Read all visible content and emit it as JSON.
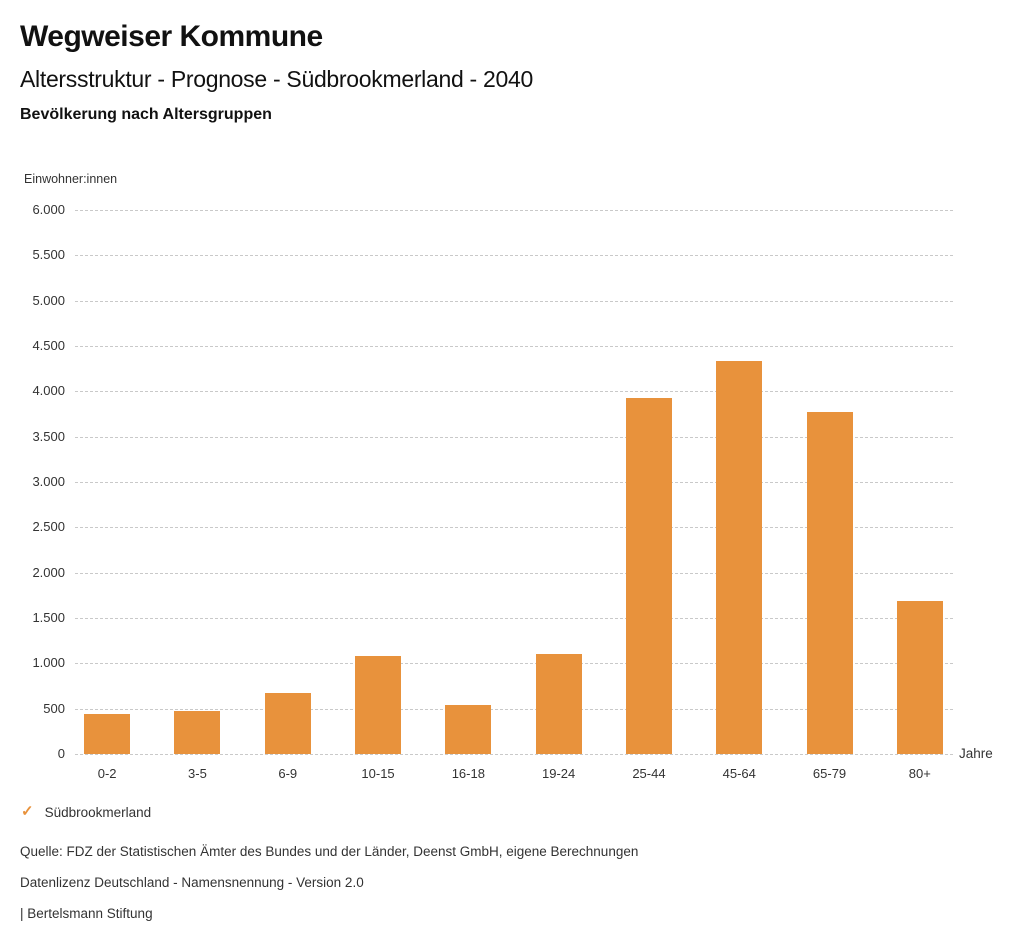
{
  "header": {
    "title": "Wegweiser Kommune",
    "subtitle": "Altersstruktur - Prognose - Südbrookmerland - 2040",
    "heading": "Bevölkerung nach Altersgruppen"
  },
  "chart_data": {
    "type": "bar",
    "title": "Bevölkerung nach Altersgruppen",
    "unit_label": "Einwohner:innen",
    "xlabel": "Jahre",
    "categories": [
      "0-2",
      "3-5",
      "6-9",
      "10-15",
      "16-18",
      "19-24",
      "25-44",
      "45-64",
      "65-79",
      "80+"
    ],
    "values": [
      440,
      470,
      670,
      1080,
      545,
      1100,
      3930,
      4330,
      3775,
      1690
    ],
    "series_name": "Südbrookmerland",
    "ylim": [
      0,
      6000
    ],
    "ytick_step": 500,
    "ytick_labels": [
      "0",
      "500",
      "1.000",
      "1.500",
      "2.000",
      "2.500",
      "3.000",
      "3.500",
      "4.000",
      "4.500",
      "5.000",
      "5.500",
      "6.000"
    ],
    "grid": true,
    "legend_position": "bottom-left",
    "bar_color": "#E8923C",
    "grid_color": "#C9C9C9",
    "text_color": "#333333"
  },
  "legend": {
    "marker": "✓",
    "label": "Südbrookmerland"
  },
  "footer": {
    "source": "Quelle: FDZ der Statistischen Ämter des Bundes und der Länder, Deenst GmbH, eigene Berechnungen",
    "license": "Datenlizenz Deutschland - Namensnennung - Version 2.0",
    "publisher": "| Bertelsmann Stiftung"
  }
}
